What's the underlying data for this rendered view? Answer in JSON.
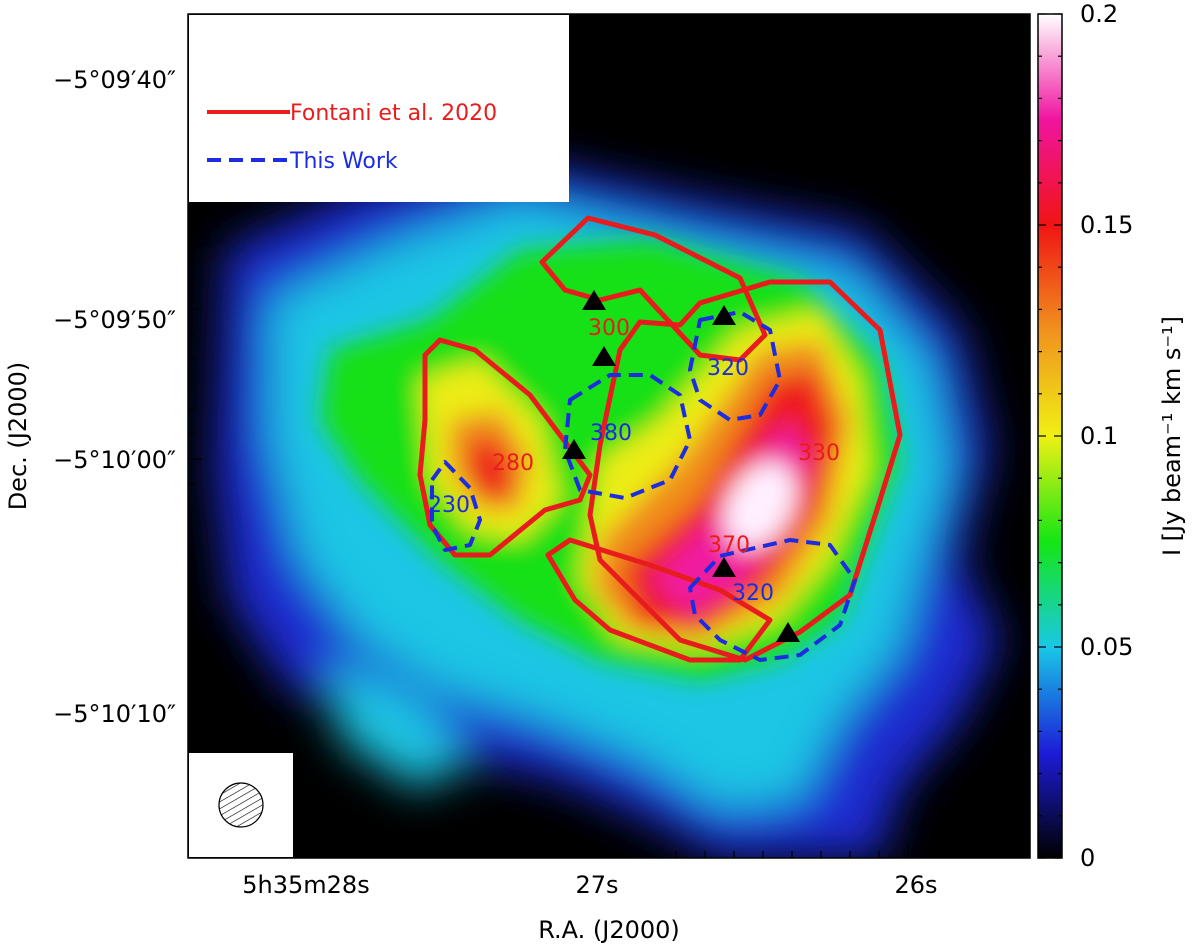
{
  "chart_data": {
    "type": "heatmap",
    "title": "",
    "xlabel": "R.A. (J2000)",
    "ylabel": "Dec. (J2000)",
    "colorbar_label": "I [Jy beam⁻¹ km s⁻¹]",
    "colorbar_ticks": [
      "0",
      "0.05",
      "0.1",
      "0.15",
      "0.2"
    ],
    "colorbar_range": [
      0,
      0.2
    ],
    "colormap": [
      "#000000",
      "#1c1cd8",
      "#19c8e6",
      "#14e614",
      "#f0f014",
      "#f0921e",
      "#f01414",
      "#f014a0",
      "#ffffff"
    ],
    "x_ticks": [
      "5h35m28s",
      "27s",
      "26s"
    ],
    "y_ticks": [
      "−5°09′40″",
      "−5°09′50″",
      "−5°10′00″",
      "−5°10′10″"
    ],
    "legend": {
      "placement": "top-left",
      "entries": [
        {
          "name": "Fontani et al. 2020",
          "color": "#e81c1c",
          "style": "solid"
        },
        {
          "name": "This Work",
          "color": "#1c2ce0",
          "style": "dashed"
        }
      ]
    },
    "region_labels": [
      {
        "text": "300",
        "series": "Fontani et al. 2020"
      },
      {
        "text": "280",
        "series": "Fontani et al. 2020"
      },
      {
        "text": "330",
        "series": "Fontani et al. 2020"
      },
      {
        "text": "370",
        "series": "Fontani et al. 2020"
      },
      {
        "text": "320",
        "series": "This Work"
      },
      {
        "text": "380",
        "series": "This Work"
      },
      {
        "text": "230",
        "series": "This Work"
      },
      {
        "text": "320",
        "series": "This Work"
      }
    ],
    "markers": {
      "shape": "triangle",
      "color": "#000000",
      "count": 6
    },
    "beam": {
      "placement": "bottom-left",
      "shape": "hatched-ellipse"
    }
  }
}
